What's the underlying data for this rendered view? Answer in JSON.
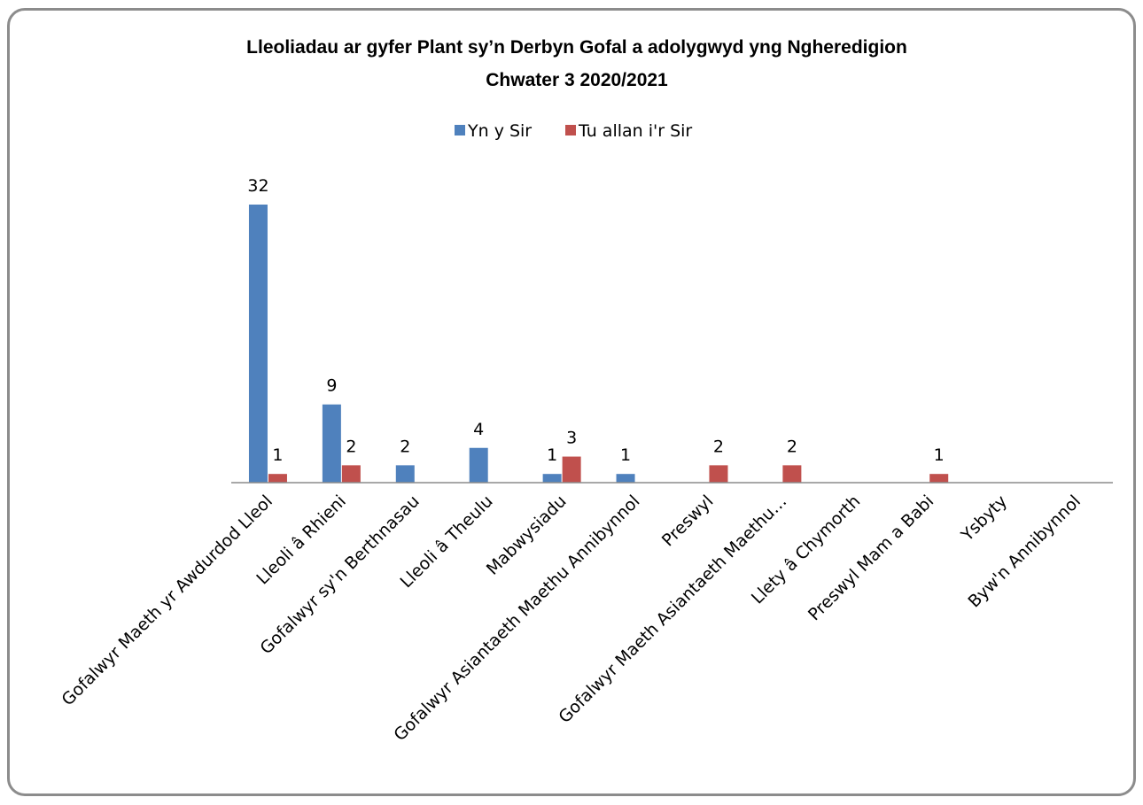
{
  "chart_data": {
    "type": "bar",
    "title_lines": [
      "Lleoliadau ar gyfer Plant sy’n Derbyn Gofal a adolygwyd yng Ngheredigion",
      "Chwater 3  2020/2021"
    ],
    "categories": [
      "Gofalwyr Maeth yr Awdurdod Lleol",
      "Lleoli â Rhieni",
      "Gofalwyr sy'n Berthnasau",
      "Lleoli â Theulu",
      "Mabwysiadu",
      "Gofalwyr Asiantaeth Maethu Annibynnol",
      "Preswyl",
      "Gofalwyr Maeth Asiantaeth Maethu…",
      "Llety â Chymorth",
      "Preswyl Mam a Babi",
      "Ysbyty",
      "Byw'n Annibynnol"
    ],
    "series": [
      {
        "name": "Yn y Sir",
        "color": "#4F81BD",
        "values": [
          32,
          9,
          2,
          4,
          1,
          1,
          null,
          null,
          null,
          null,
          null,
          null
        ]
      },
      {
        "name": "Tu allan i'r Sir",
        "color": "#C0504D",
        "values": [
          1,
          2,
          null,
          null,
          3,
          null,
          2,
          2,
          null,
          1,
          null,
          null
        ]
      }
    ],
    "legend_position": "top",
    "grid": false,
    "ylim": [
      0,
      32
    ]
  }
}
